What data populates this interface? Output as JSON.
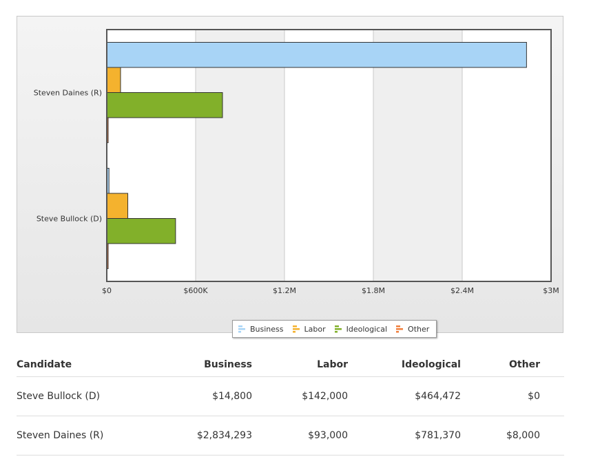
{
  "chart_data": {
    "type": "bar",
    "orientation": "horizontal",
    "categories": [
      "Steven Daines (R)",
      "Steve Bullock (D)"
    ],
    "series": [
      {
        "name": "Business",
        "color": "#a8d4f6",
        "values": [
          2834293,
          14800
        ]
      },
      {
        "name": "Labor",
        "color": "#f4b22e",
        "values": [
          93000,
          142000
        ]
      },
      {
        "name": "Ideological",
        "color": "#82b02a",
        "values": [
          781370,
          464472
        ]
      },
      {
        "name": "Other",
        "color": "#f07f3c",
        "values": [
          8000,
          0
        ]
      }
    ],
    "x_ticks": [
      0,
      600000,
      1200000,
      1800000,
      2400000,
      3000000
    ],
    "x_tick_labels": [
      "$0",
      "$600K",
      "$1.2M",
      "$1.8M",
      "$2.4M",
      "$3M"
    ],
    "xlim": [
      0,
      3000000
    ],
    "title": "",
    "xlabel": "",
    "ylabel": "",
    "legend_position": "bottom-center",
    "grid": "alternating vertical bands"
  },
  "legend_icons": [
    "bar-legend-icon",
    "bar-legend-icon",
    "bar-legend-icon",
    "bar-legend-icon"
  ],
  "table": {
    "headers": [
      "Candidate",
      "Business",
      "Labor",
      "Ideological",
      "Other"
    ],
    "rows": [
      [
        "Steve Bullock (D)",
        "$14,800",
        "$142,000",
        "$464,472",
        "$0"
      ],
      [
        "Steven Daines (R)",
        "$2,834,293",
        "$93,000",
        "$781,370",
        "$8,000"
      ]
    ]
  }
}
